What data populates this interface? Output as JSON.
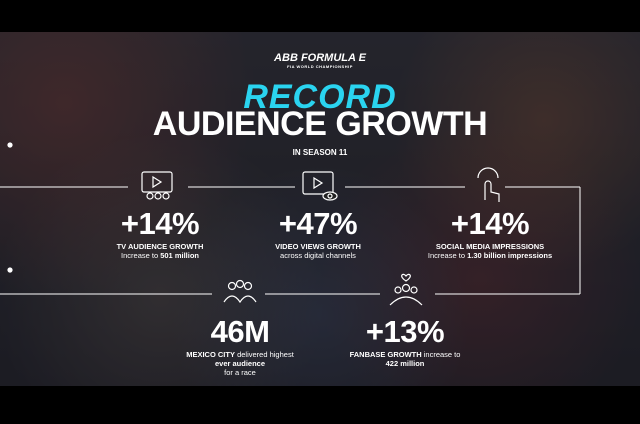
{
  "logo": {
    "brand": "ABB",
    "name": "FORMULA E",
    "sub": "FIA WORLD CHAMPIONSHIP"
  },
  "header": {
    "kicker": "RECORD",
    "title": "AUDIENCE GROWTH",
    "subtitle": "IN SEASON 11"
  },
  "stats": [
    {
      "value": "+14%",
      "lines": [
        [
          {
            "text": "TV AUDIENCE GROWTH",
            "bold": true
          }
        ],
        [
          {
            "text": "Increase to ",
            "bold": false
          },
          {
            "text": "501 million",
            "bold": true
          }
        ]
      ]
    },
    {
      "value": "+47%",
      "lines": [
        [
          {
            "text": "VIDEO VIEWS GROWTH",
            "bold": true
          }
        ],
        [
          {
            "text": "across digital channels",
            "bold": false
          }
        ]
      ]
    },
    {
      "value": "+14%",
      "lines": [
        [
          {
            "text": "SOCIAL MEDIA IMPRESSIONS",
            "bold": true
          }
        ],
        [
          {
            "text": "Increase to ",
            "bold": false
          },
          {
            "text": "1.30 billion impressions",
            "bold": true
          }
        ]
      ]
    },
    {
      "value": "46M",
      "lines": [
        [
          {
            "text": "MEXICO CITY",
            "bold": true
          },
          {
            "text": " delivered highest",
            "bold": false
          }
        ],
        [
          {
            "text": "ever audience",
            "bold": true
          }
        ],
        [
          {
            "text": "for a race",
            "bold": false
          }
        ]
      ]
    },
    {
      "value": "+13%",
      "lines": [
        [
          {
            "text": "FANBASE GROWTH",
            "bold": true
          },
          {
            "text": " increase to",
            "bold": false
          }
        ],
        [
          {
            "text": "422 million",
            "bold": true
          }
        ]
      ]
    }
  ]
}
